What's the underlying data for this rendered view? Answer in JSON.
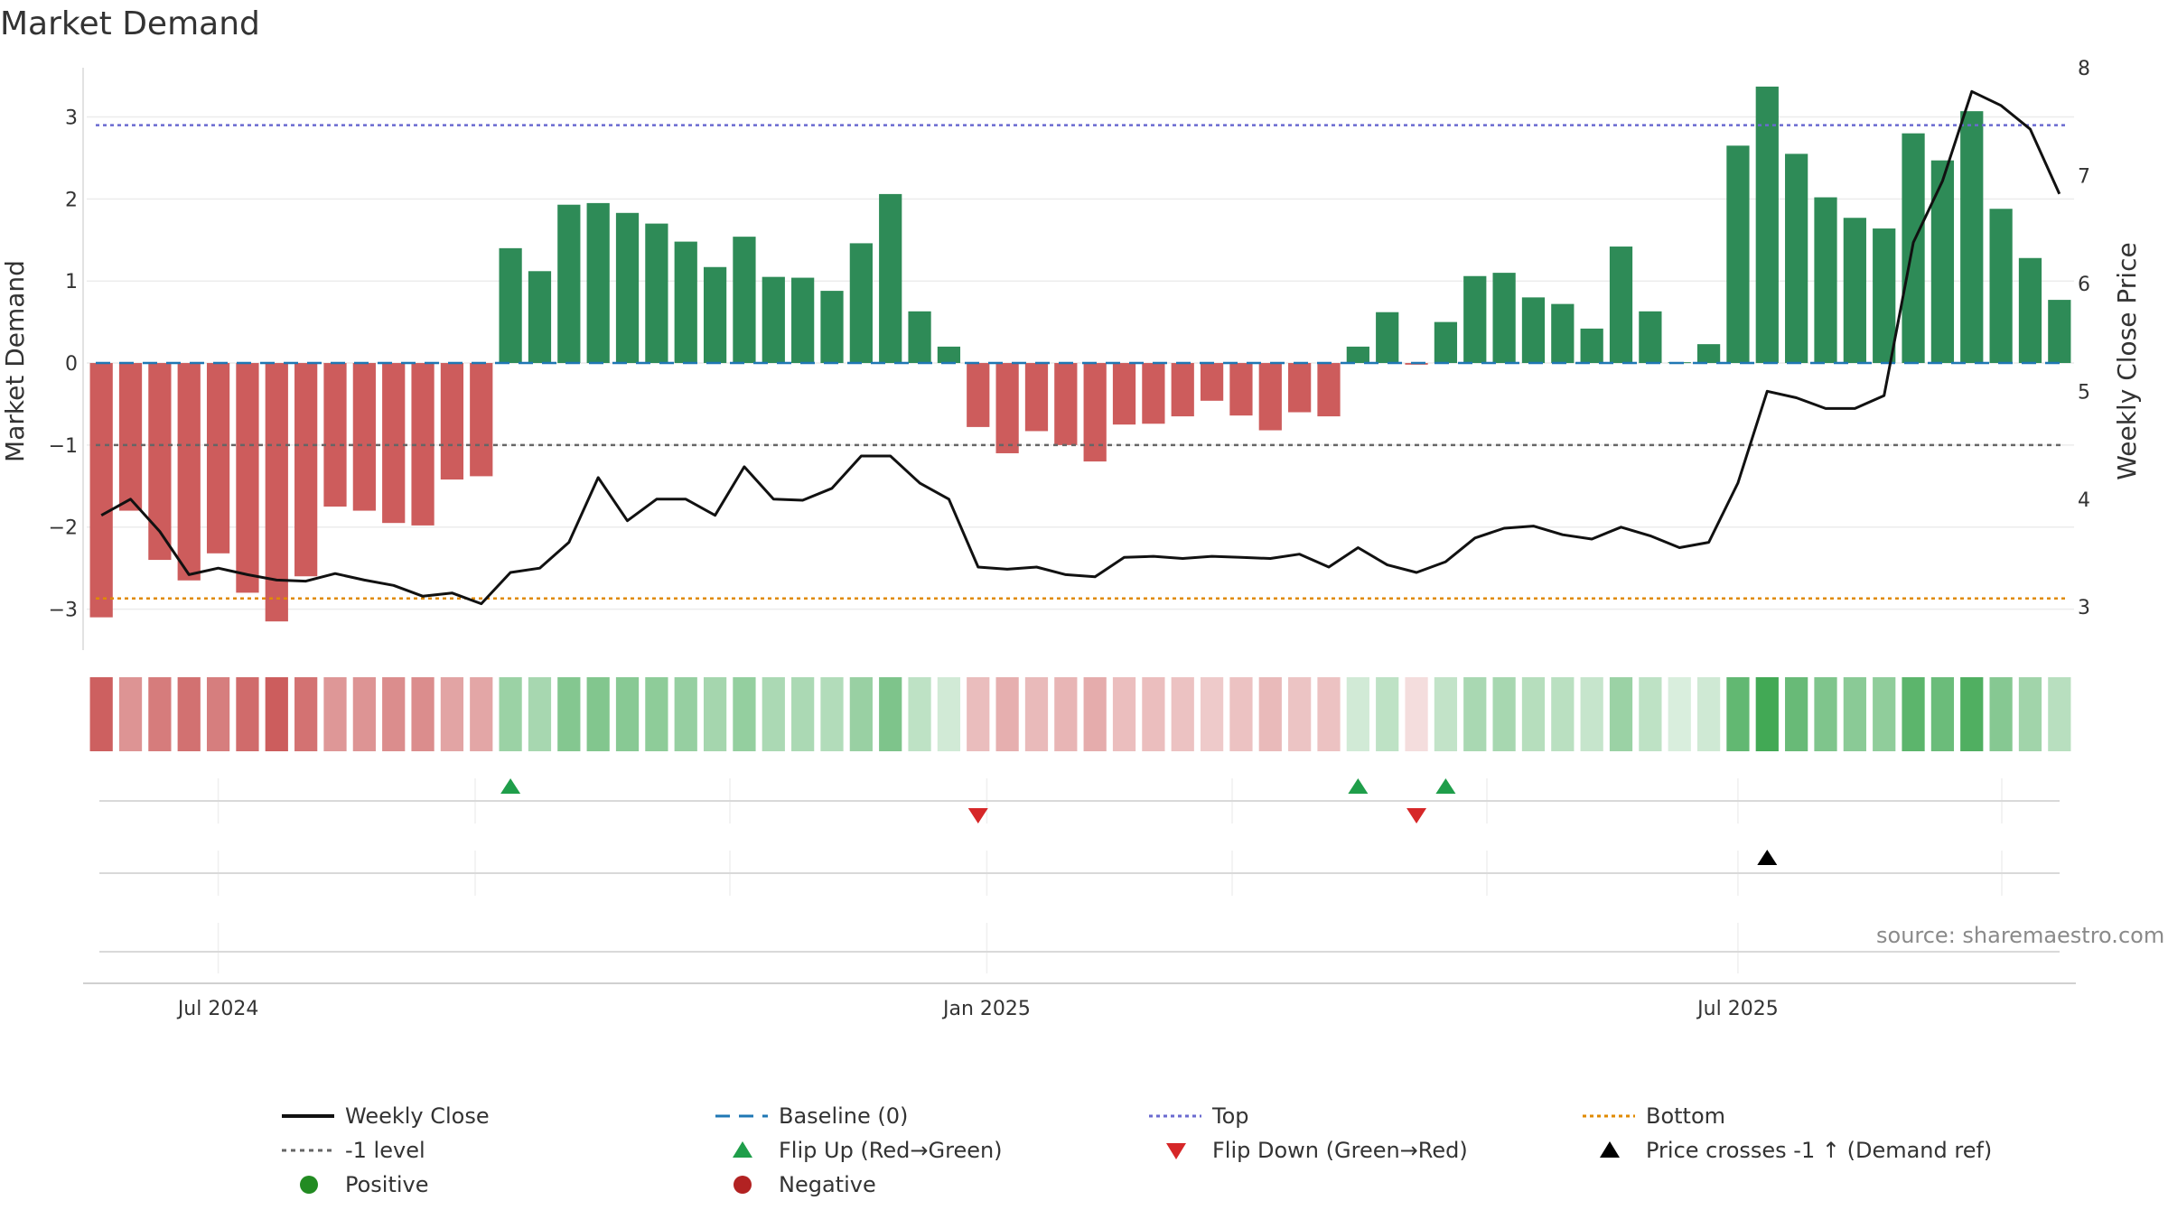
{
  "title": "Market Demand",
  "source": "source: sharemaestro.com",
  "chart_data": {
    "type": "bar",
    "title": "Market Demand",
    "ylabel_left": "Market Demand",
    "ylabel_right": "Weekly Close Price",
    "ylim_left": [
      -3.5,
      3.6
    ],
    "ylim_right": [
      2.6,
      8.0
    ],
    "yticks_left": [
      -3,
      -2,
      -1,
      0,
      1,
      2,
      3
    ],
    "yticks_right": [
      3,
      4,
      5,
      6,
      7,
      8
    ],
    "x_ticks": [
      {
        "label": "Jul 2024",
        "index": 4
      },
      {
        "label": "Jan 2025",
        "index": 30.3
      },
      {
        "label": "Jul 2025",
        "index": 56
      }
    ],
    "reference_lines": {
      "top": 2.9,
      "bottom": -2.87,
      "minus_one": -1,
      "baseline": 0
    },
    "demand": [
      -3.1,
      -1.8,
      -2.4,
      -2.65,
      -2.32,
      -2.8,
      -3.15,
      -2.6,
      -1.75,
      -1.8,
      -1.95,
      -1.98,
      -1.42,
      -1.38,
      1.4,
      1.12,
      1.93,
      1.95,
      1.83,
      1.7,
      1.48,
      1.17,
      1.54,
      1.05,
      1.04,
      0.88,
      1.46,
      2.06,
      0.63,
      0.2,
      -0.78,
      -1.1,
      -0.83,
      -1.0,
      -1.2,
      -0.75,
      -0.74,
      -0.65,
      -0.46,
      -0.64,
      -0.82,
      -0.6,
      -0.65,
      0.2,
      0.62,
      -0.02,
      0.5,
      1.06,
      1.1,
      0.8,
      0.72,
      0.42,
      1.42,
      0.63,
      0.01,
      0.23,
      2.65,
      3.37,
      2.55,
      2.02,
      1.77,
      1.64,
      2.8,
      2.47,
      3.07,
      1.88,
      1.28,
      0.77
    ],
    "weekly_close": [
      3.85,
      4.0,
      3.7,
      3.3,
      3.36,
      3.3,
      3.25,
      3.24,
      3.31,
      3.25,
      3.2,
      3.1,
      3.13,
      3.03,
      3.32,
      3.36,
      3.6,
      4.2,
      3.8,
      4.0,
      4.0,
      3.85,
      4.3,
      4.0,
      3.99,
      4.1,
      4.4,
      4.4,
      4.15,
      4.0,
      3.37,
      3.35,
      3.37,
      3.3,
      3.28,
      3.46,
      3.47,
      3.45,
      3.47,
      3.46,
      3.45,
      3.49,
      3.37,
      3.55,
      3.39,
      3.32,
      3.42,
      3.64,
      3.73,
      3.75,
      3.67,
      3.63,
      3.74,
      3.66,
      3.55,
      3.6,
      4.15,
      5.0,
      4.94,
      4.84,
      4.84,
      4.96,
      6.38,
      6.95,
      7.78,
      7.65,
      7.43,
      6.83
    ],
    "flip_up_indices": [
      14,
      43,
      46
    ],
    "flip_down_indices": [
      30,
      45
    ],
    "price_cross_indices": [
      57
    ],
    "colors": {
      "positive_bar": "#2e8b57",
      "negative_bar": "#cd5c5c",
      "weekly_close": "#111111",
      "baseline": "#1f77b4",
      "top": "#6a6ad0",
      "bottom": "#e08a00",
      "minus_one": "#666666",
      "flip_up": "#1f9e4a",
      "flip_down": "#d62728",
      "cross": "#000000",
      "positive_dot": "#228b22",
      "negative_dot": "#b22222"
    }
  },
  "legend": [
    {
      "key": "weekly_close",
      "label": "Weekly Close"
    },
    {
      "key": "baseline",
      "label": "Baseline (0)"
    },
    {
      "key": "top",
      "label": "Top"
    },
    {
      "key": "bottom",
      "label": "Bottom"
    },
    {
      "key": "minus_one",
      "label": "-1 level"
    },
    {
      "key": "flip_up",
      "label": "Flip Up (Red→Green)"
    },
    {
      "key": "flip_down",
      "label": "Flip Down (Green→Red)"
    },
    {
      "key": "cross",
      "label": "Price crosses -1 ↑ (Demand ref)"
    },
    {
      "key": "positive_dot",
      "label": "Positive"
    },
    {
      "key": "negative_dot",
      "label": "Negative"
    }
  ]
}
